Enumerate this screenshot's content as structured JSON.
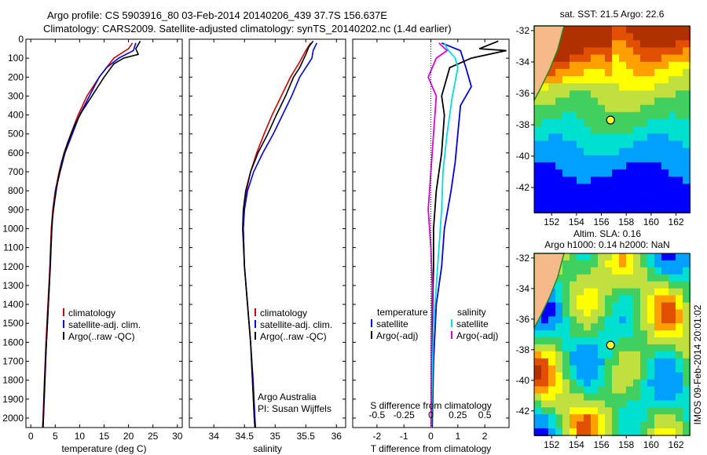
{
  "header": {
    "title_line1": "Argo profile: CS 5903916_80 03-Feb-2014 20140206_439 37.7S 156.637E",
    "title_line2": "Climatology: CARS2009. Satellite-adjusted climatology: synTS_20140202.nc (1.4d earlier)"
  },
  "side_label": "IMOS 09-Feb-2014 20:01:02",
  "chart_data": [
    {
      "type": "line",
      "id": "temperature",
      "xlabel": "temperature (deg C)",
      "ylabel": "",
      "xlim": [
        -1,
        31
      ],
      "ylim": [
        2050,
        0
      ],
      "xticks": [
        0,
        5,
        10,
        15,
        20,
        25,
        30
      ],
      "yticks": [
        0,
        100,
        200,
        300,
        400,
        500,
        600,
        700,
        800,
        900,
        1000,
        1100,
        1200,
        1300,
        1400,
        1500,
        1600,
        1700,
        1800,
        1900,
        2000
      ],
      "colors": {
        "climatology": "#cc0000",
        "satellite": "#0000dd",
        "argo": "#000000"
      },
      "legend": [
        "climatology",
        "satellite-adj. clim.",
        "Argo(..raw -QC)"
      ],
      "series": [
        {
          "name": "climatology",
          "points": [
            [
              20.8,
              20
            ],
            [
              20,
              50
            ],
            [
              17,
              100
            ],
            [
              14,
              200
            ],
            [
              11.5,
              300
            ],
            [
              9.7,
              400
            ],
            [
              8.2,
              500
            ],
            [
              6.8,
              600
            ],
            [
              5.8,
              700
            ],
            [
              5.0,
              800
            ],
            [
              4.5,
              900
            ],
            [
              4.2,
              1000
            ],
            [
              3.9,
              1200
            ],
            [
              3.5,
              1400
            ],
            [
              3.1,
              1600
            ],
            [
              2.8,
              1800
            ],
            [
              2.5,
              2000
            ],
            [
              2.4,
              2050
            ]
          ]
        },
        {
          "name": "satellite-adj. clim.",
          "points": [
            [
              21.5,
              20
            ],
            [
              21,
              60
            ],
            [
              18,
              100
            ],
            [
              15.5,
              150
            ],
            [
              14,
              200
            ],
            [
              12,
              300
            ],
            [
              10,
              400
            ],
            [
              8.5,
              500
            ],
            [
              7,
              600
            ],
            [
              6,
              700
            ],
            [
              5.1,
              800
            ],
            [
              4.6,
              900
            ],
            [
              4.3,
              1000
            ],
            [
              4.0,
              1200
            ],
            [
              3.6,
              1400
            ],
            [
              3.2,
              1600
            ],
            [
              2.9,
              1800
            ],
            [
              2.6,
              2000
            ],
            [
              2.5,
              2050
            ]
          ]
        },
        {
          "name": "Argo(..raw -QC)",
          "points": [
            [
              22.4,
              10
            ],
            [
              21.5,
              50
            ],
            [
              22,
              80
            ],
            [
              19,
              100
            ],
            [
              17,
              130
            ],
            [
              15,
              200
            ],
            [
              12.5,
              300
            ],
            [
              10.5,
              380
            ],
            [
              9,
              450
            ],
            [
              7.5,
              550
            ],
            [
              6.3,
              650
            ],
            [
              5.5,
              750
            ],
            [
              4.9,
              850
            ],
            [
              4.4,
              950
            ],
            [
              4.1,
              1100
            ],
            [
              3.8,
              1300
            ],
            [
              3.4,
              1500
            ],
            [
              3.0,
              1700
            ],
            [
              2.7,
              1900
            ],
            [
              2.5,
              2050
            ]
          ]
        }
      ]
    },
    {
      "type": "line",
      "id": "salinity",
      "xlabel": "salinity",
      "xlim": [
        33.6,
        36.15
      ],
      "ylim": [
        2050,
        0
      ],
      "xticks": [
        34,
        34.5,
        35,
        35.5,
        36
      ],
      "legend": [
        "climatology",
        "satellite-adj. clim.",
        "Argo(..raw -QC)"
      ],
      "annotation": [
        "Argo Australia",
        "PI: Susan Wijffels"
      ],
      "series": [
        {
          "name": "climatology",
          "points": [
            [
              35.58,
              20
            ],
            [
              35.5,
              60
            ],
            [
              35.4,
              120
            ],
            [
              35.25,
              200
            ],
            [
              35.1,
              300
            ],
            [
              34.95,
              400
            ],
            [
              34.82,
              500
            ],
            [
              34.7,
              600
            ],
            [
              34.6,
              700
            ],
            [
              34.53,
              800
            ],
            [
              34.49,
              900
            ],
            [
              34.48,
              1000
            ],
            [
              34.5,
              1200
            ],
            [
              34.55,
              1400
            ],
            [
              34.6,
              1600
            ],
            [
              34.63,
              1800
            ],
            [
              34.66,
              2000
            ],
            [
              34.67,
              2050
            ]
          ]
        },
        {
          "name": "satellite-adj. clim.",
          "points": [
            [
              35.68,
              20
            ],
            [
              35.62,
              60
            ],
            [
              35.6,
              100
            ],
            [
              35.5,
              150
            ],
            [
              35.4,
              200
            ],
            [
              35.27,
              300
            ],
            [
              35.12,
              400
            ],
            [
              34.97,
              500
            ],
            [
              34.8,
              600
            ],
            [
              34.65,
              700
            ],
            [
              34.55,
              800
            ],
            [
              34.5,
              900
            ],
            [
              34.48,
              1000
            ],
            [
              34.5,
              1200
            ],
            [
              34.55,
              1400
            ],
            [
              34.6,
              1600
            ],
            [
              34.64,
              1800
            ],
            [
              34.67,
              2000
            ],
            [
              34.68,
              2050
            ]
          ]
        },
        {
          "name": "Argo(..raw -QC)",
          "points": [
            [
              35.62,
              10
            ],
            [
              35.55,
              40
            ],
            [
              35.5,
              80
            ],
            [
              35.4,
              150
            ],
            [
              35.3,
              200
            ],
            [
              35.17,
              300
            ],
            [
              35.02,
              400
            ],
            [
              34.88,
              500
            ],
            [
              34.72,
              600
            ],
            [
              34.6,
              700
            ],
            [
              34.52,
              800
            ],
            [
              34.48,
              900
            ],
            [
              34.47,
              1000
            ],
            [
              34.5,
              1200
            ],
            [
              34.55,
              1400
            ],
            [
              34.6,
              1600
            ],
            [
              34.63,
              1800
            ],
            [
              34.66,
              2000
            ],
            [
              34.67,
              2050
            ]
          ]
        }
      ]
    },
    {
      "type": "line",
      "id": "difference",
      "xlabel": "T difference from climatology",
      "xlabel_top": "S difference from climatology",
      "xlim": [
        -2.9,
        2.9
      ],
      "ylim": [
        2050,
        0
      ],
      "xticks": [
        -2,
        -1,
        0,
        1,
        2
      ],
      "s_ticks": [
        "-0.5",
        "-0.25",
        "0",
        "0.25",
        "0.5"
      ],
      "legend_temperature": [
        "temperature",
        "satellite",
        "Argo(-adj)"
      ],
      "legend_salinity": [
        "salinity",
        "satellite",
        "Argo(-adj)"
      ],
      "colors": {
        "t_satellite": "#0000dd",
        "t_argo": "#000000",
        "s_satellite": "#00dddd",
        "s_argo": "#dd00dd"
      },
      "series": [
        {
          "name": "T satellite",
          "points": [
            [
              0.4,
              20
            ],
            [
              1.1,
              60
            ],
            [
              1.3,
              150
            ],
            [
              1.5,
              250
            ],
            [
              1.1,
              350
            ],
            [
              1,
              500
            ],
            [
              0.9,
              650
            ],
            [
              0.75,
              800
            ],
            [
              0.5,
              1000
            ],
            [
              0.4,
              1200
            ],
            [
              0.2,
              1400
            ],
            [
              0.1,
              1700
            ],
            [
              0.05,
              2050
            ]
          ]
        },
        {
          "name": "T Argo(-adj)",
          "points": [
            [
              2.5,
              10
            ],
            [
              1.8,
              50
            ],
            [
              2.8,
              60
            ],
            [
              1.5,
              100
            ],
            [
              0.7,
              150
            ],
            [
              0.4,
              300
            ],
            [
              0.5,
              400
            ],
            [
              0.4,
              600
            ],
            [
              0.2,
              800
            ],
            [
              0.1,
              1000
            ],
            [
              0.1,
              1200
            ],
            [
              0.05,
              1500
            ],
            [
              0.03,
              2050
            ]
          ]
        },
        {
          "name": "S satellite",
          "points": [
            [
              0.5,
              20
            ],
            [
              0.6,
              50
            ],
            [
              0.9,
              100
            ],
            [
              1.0,
              150
            ],
            [
              0.8,
              300
            ],
            [
              0.6,
              500
            ],
            [
              0.45,
              700
            ],
            [
              0.4,
              900
            ],
            [
              0.3,
              1100
            ],
            [
              0.2,
              1300
            ],
            [
              0.1,
              1500
            ],
            [
              0.05,
              1800
            ],
            [
              0.02,
              2050
            ]
          ]
        },
        {
          "name": "S Argo(-adj)",
          "points": [
            [
              0.3,
              20
            ],
            [
              0.6,
              60
            ],
            [
              0.2,
              100
            ],
            [
              -0.1,
              200
            ],
            [
              0.2,
              300
            ],
            [
              0.1,
              500
            ],
            [
              0.0,
              700
            ],
            [
              -0.1,
              900
            ],
            [
              0.0,
              1100
            ],
            [
              0.05,
              1300
            ],
            [
              0.02,
              1600
            ],
            [
              0.01,
              2050
            ]
          ]
        }
      ]
    }
  ],
  "maps": [
    {
      "id": "sst-map",
      "title": "sat. SST: 21.5 Argo: 22.6",
      "yticks": [
        "-32",
        "-34",
        "-36",
        "-38",
        "-40",
        "-42"
      ],
      "xticks": [
        "152",
        "154",
        "156",
        "158",
        "160",
        "162"
      ],
      "marker": {
        "lon": 156.637,
        "lat": -37.7
      }
    },
    {
      "id": "sla-map",
      "title_line1": "Altim. SLA: 0.16",
      "title_line2": "Argo h1000: 0.14 h2000: NaN",
      "yticks": [
        "-32",
        "-34",
        "-36",
        "-38",
        "-40",
        "-42"
      ],
      "xticks": [
        "152",
        "154",
        "156",
        "158",
        "160",
        "162"
      ],
      "marker": {
        "lon": 156.637,
        "lat": -37.7
      }
    }
  ]
}
